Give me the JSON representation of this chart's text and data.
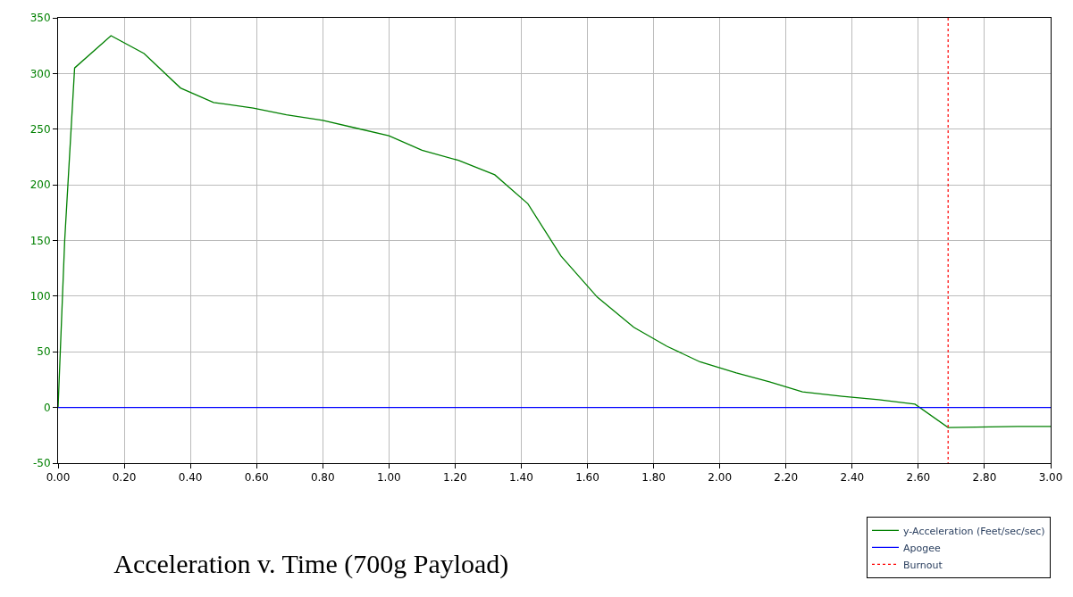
{
  "chart_data": {
    "type": "line",
    "title": "Acceleration v. Time (700g Payload)",
    "x": [
      0.0,
      0.02,
      0.05,
      0.16,
      0.26,
      0.37,
      0.47,
      0.59,
      0.69,
      0.8,
      0.9,
      1.0,
      1.1,
      1.21,
      1.32,
      1.42,
      1.52,
      1.63,
      1.74,
      1.84,
      1.94,
      2.05,
      2.15,
      2.25,
      2.37,
      2.48,
      2.59,
      2.69,
      2.9,
      3.0
    ],
    "series": [
      {
        "name": "y-Acceleration (Feet/sec/sec)",
        "color": "#008000",
        "values": [
          0,
          150,
          305,
          334,
          318,
          287,
          274,
          269,
          263,
          258,
          251,
          244,
          231,
          222,
          209,
          183,
          136,
          99,
          72,
          55,
          41,
          31,
          23,
          14,
          10,
          7,
          3,
          -18,
          -17,
          -17
        ]
      }
    ],
    "ref_lines": [
      {
        "axis": "y",
        "value": 0,
        "label": "Apogee",
        "color": "#0000ff",
        "line_style": "solid"
      },
      {
        "axis": "x",
        "value": 2.69,
        "label": "Burnout",
        "color": "#ff0000",
        "line_style": "dotted"
      }
    ],
    "xlim": [
      0,
      3
    ],
    "ylim": [
      -50,
      350
    ],
    "xticks": [
      {
        "value": 0,
        "label": "0.00"
      },
      {
        "value": 0.2,
        "label": "0.20"
      },
      {
        "value": 0.4,
        "label": "0.40"
      },
      {
        "value": 0.6,
        "label": "0.60"
      },
      {
        "value": 0.8,
        "label": "0.80"
      },
      {
        "value": 1.0,
        "label": "1.00"
      },
      {
        "value": 1.2,
        "label": "1.20"
      },
      {
        "value": 1.4,
        "label": "1.40"
      },
      {
        "value": 1.6,
        "label": "1.60"
      },
      {
        "value": 1.8,
        "label": "1.80"
      },
      {
        "value": 2.0,
        "label": "2.00"
      },
      {
        "value": 2.2,
        "label": "2.20"
      },
      {
        "value": 2.4,
        "label": "2.40"
      },
      {
        "value": 2.6,
        "label": "2.60"
      },
      {
        "value": 2.8,
        "label": "2.80"
      },
      {
        "value": 3.0,
        "label": "3.00"
      }
    ],
    "yticks": [
      -50,
      0,
      50,
      100,
      150,
      200,
      250,
      300,
      350
    ],
    "grid": true,
    "legend": "bottom right",
    "marker": "none",
    "line_style": "solid"
  }
}
